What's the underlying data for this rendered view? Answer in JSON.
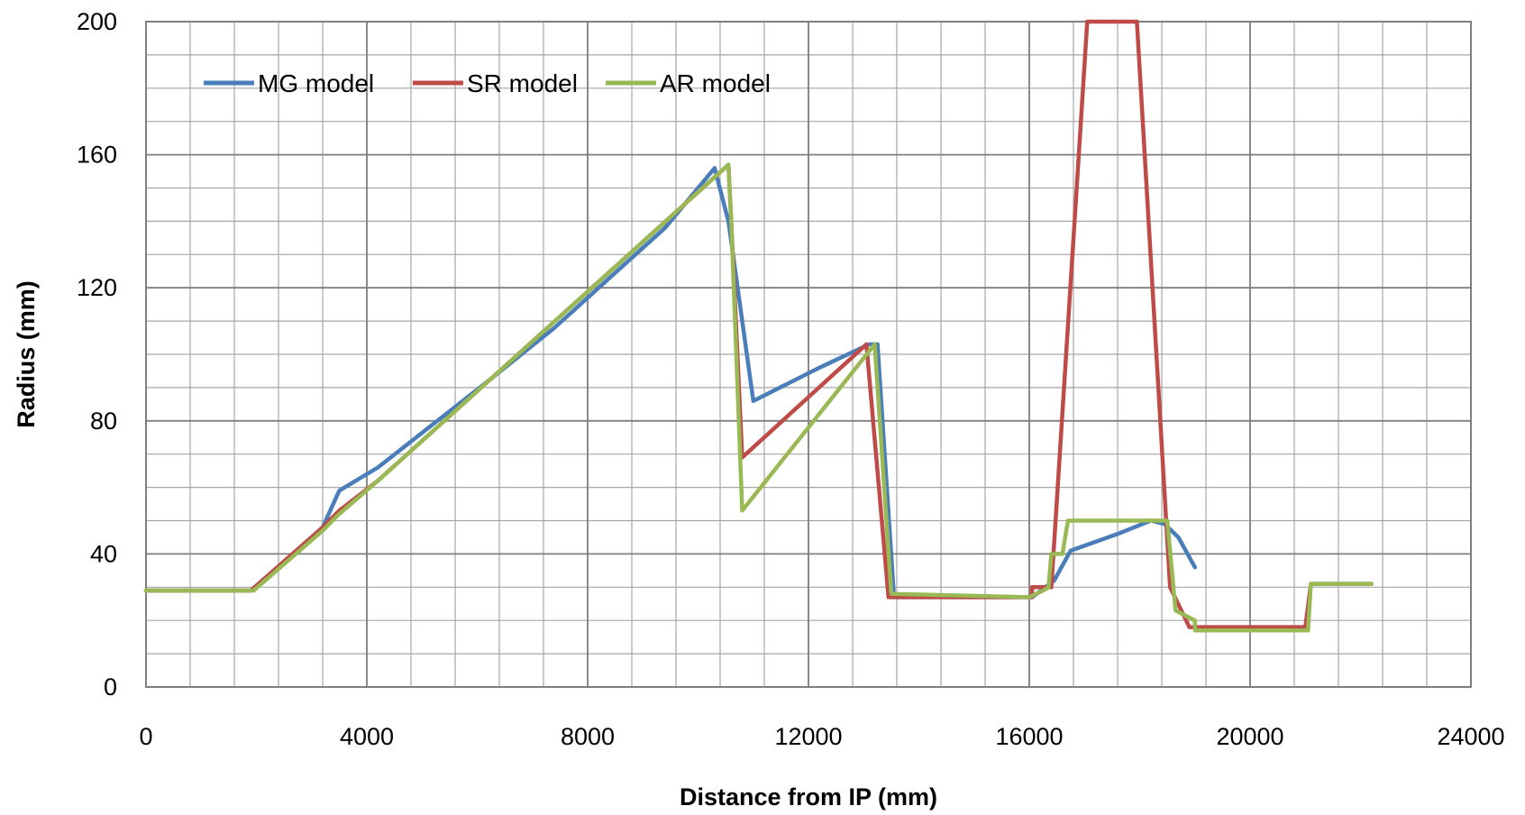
{
  "chart_data": {
    "type": "line",
    "title": "",
    "xlabel": "Distance from IP (mm)",
    "ylabel": "Radius (mm)",
    "xlim": [
      0,
      24000
    ],
    "ylim": [
      0,
      200
    ],
    "x_ticks": [
      0,
      4000,
      8000,
      12000,
      16000,
      20000,
      24000
    ],
    "y_ticks": [
      0,
      40,
      80,
      120,
      160,
      200
    ],
    "x_minor_step": 800,
    "y_minor_step": 10,
    "grid": true,
    "legend_position": "top-left",
    "series": [
      {
        "name": "MG model",
        "color": "#4a7ebb",
        "points": [
          [
            0,
            29
          ],
          [
            1900,
            29
          ],
          [
            2800,
            42
          ],
          [
            3200,
            48
          ],
          [
            3500,
            59
          ],
          [
            4200,
            66
          ],
          [
            5200,
            79
          ],
          [
            6200,
            92
          ],
          [
            7400,
            108
          ],
          [
            8400,
            123
          ],
          [
            9400,
            138
          ],
          [
            10300,
            156
          ],
          [
            10550,
            140
          ],
          [
            10800,
            110
          ],
          [
            11000,
            86
          ],
          [
            12200,
            96
          ],
          [
            13100,
            103
          ],
          [
            13250,
            103
          ],
          [
            13550,
            27
          ],
          [
            16050,
            27
          ],
          [
            16450,
            32
          ],
          [
            16750,
            41
          ],
          [
            17600,
            46
          ],
          [
            18200,
            50
          ],
          [
            18450,
            49
          ],
          [
            18700,
            45
          ],
          [
            19000,
            36
          ]
        ]
      },
      {
        "name": "SR model",
        "color": "#be4b48",
        "points": [
          [
            0,
            29
          ],
          [
            1900,
            29
          ],
          [
            3200,
            48
          ],
          [
            3500,
            53
          ],
          [
            4200,
            62
          ],
          [
            10550,
            157
          ],
          [
            10600,
            140
          ],
          [
            10800,
            69
          ],
          [
            13050,
            103
          ],
          [
            13450,
            27
          ],
          [
            16050,
            27
          ],
          [
            16050,
            30
          ],
          [
            16400,
            30
          ],
          [
            17050,
            200
          ],
          [
            17950,
            200
          ],
          [
            18550,
            30
          ],
          [
            18900,
            18
          ],
          [
            21000,
            18
          ],
          [
            21100,
            31
          ],
          [
            22200,
            31
          ]
        ]
      },
      {
        "name": "AR model",
        "color": "#98b954",
        "points": [
          [
            0,
            29
          ],
          [
            1950,
            29
          ],
          [
            3200,
            47
          ],
          [
            3500,
            52
          ],
          [
            4200,
            62
          ],
          [
            10550,
            157
          ],
          [
            10600,
            140
          ],
          [
            10800,
            53
          ],
          [
            13200,
            103
          ],
          [
            13500,
            28
          ],
          [
            16000,
            27
          ],
          [
            16250,
            29
          ],
          [
            16350,
            30
          ],
          [
            16400,
            40
          ],
          [
            16600,
            40
          ],
          [
            16700,
            50
          ],
          [
            18500,
            50
          ],
          [
            18650,
            23
          ],
          [
            19000,
            20
          ],
          [
            19000,
            17
          ],
          [
            21050,
            17
          ],
          [
            21100,
            31
          ],
          [
            22200,
            31
          ]
        ]
      }
    ]
  }
}
